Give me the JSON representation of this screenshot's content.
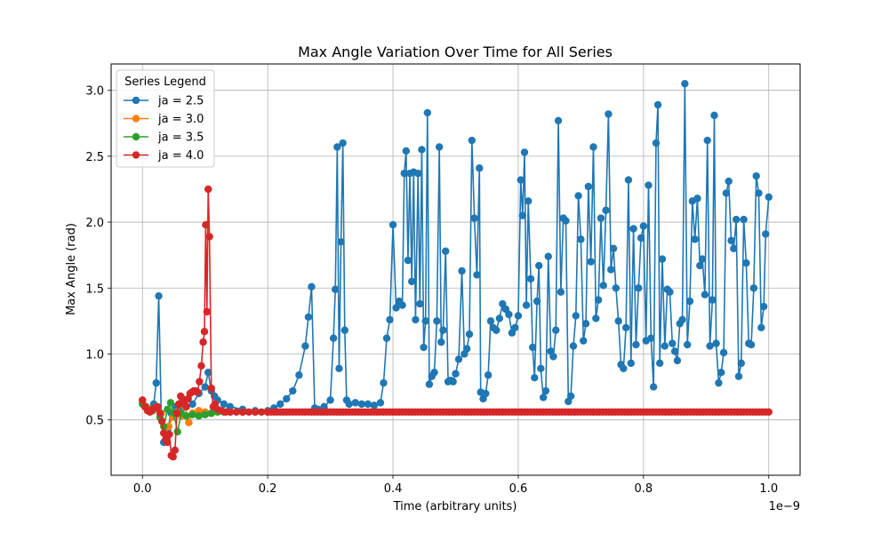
{
  "chart_data": {
    "type": "line",
    "title": "Max Angle Variation Over Time for All Series",
    "xlabel": "Time (arbitrary units)",
    "ylabel": "Max Angle (rad)",
    "x_offset_label": "1e−9",
    "xlim": [
      -0.05,
      1.05
    ],
    "ylim": [
      0.08,
      3.2
    ],
    "x_ticks": [
      0.0,
      0.2,
      0.4,
      0.6,
      0.8,
      1.0
    ],
    "x_tick_labels": [
      "0.0",
      "0.2",
      "0.4",
      "0.6",
      "0.8",
      "1.0"
    ],
    "y_ticks": [
      0.5,
      1.0,
      1.5,
      2.0,
      2.5,
      3.0
    ],
    "y_tick_labels": [
      "0.5",
      "1.0",
      "1.5",
      "2.0",
      "2.5",
      "3.0"
    ],
    "grid": true,
    "legend_title": "Series Legend",
    "legend_position": "top-left",
    "series": [
      {
        "name": "ja = 2.5",
        "color": "#1f77b4",
        "points": [
          [
            0.0,
            0.65
          ],
          [
            0.006,
            0.6
          ],
          [
            0.012,
            0.58
          ],
          [
            0.018,
            0.62
          ],
          [
            0.022,
            0.78
          ],
          [
            0.026,
            1.44
          ],
          [
            0.03,
            0.55
          ],
          [
            0.034,
            0.33
          ],
          [
            0.04,
            0.42
          ],
          [
            0.046,
            0.55
          ],
          [
            0.054,
            0.6
          ],
          [
            0.062,
            0.58
          ],
          [
            0.07,
            0.6
          ],
          [
            0.08,
            0.62
          ],
          [
            0.09,
            0.7
          ],
          [
            0.1,
            0.75
          ],
          [
            0.105,
            0.86
          ],
          [
            0.11,
            0.72
          ],
          [
            0.115,
            0.68
          ],
          [
            0.12,
            0.65
          ],
          [
            0.13,
            0.62
          ],
          [
            0.14,
            0.6
          ],
          [
            0.16,
            0.58
          ],
          [
            0.18,
            0.57
          ],
          [
            0.2,
            0.57
          ],
          [
            0.21,
            0.59
          ],
          [
            0.22,
            0.62
          ],
          [
            0.23,
            0.66
          ],
          [
            0.24,
            0.72
          ],
          [
            0.25,
            0.84
          ],
          [
            0.26,
            1.06
          ],
          [
            0.265,
            1.28
          ],
          [
            0.27,
            1.51
          ],
          [
            0.275,
            0.59
          ],
          [
            0.28,
            0.58
          ],
          [
            0.29,
            0.6
          ],
          [
            0.3,
            0.65
          ],
          [
            0.305,
            1.12
          ],
          [
            0.308,
            1.49
          ],
          [
            0.311,
            2.57
          ],
          [
            0.314,
            0.89
          ],
          [
            0.317,
            1.85
          ],
          [
            0.32,
            2.6
          ],
          [
            0.323,
            1.18
          ],
          [
            0.326,
            0.65
          ],
          [
            0.33,
            0.62
          ],
          [
            0.34,
            0.63
          ],
          [
            0.35,
            0.62
          ],
          [
            0.36,
            0.62
          ],
          [
            0.37,
            0.61
          ],
          [
            0.38,
            0.63
          ],
          [
            0.385,
            0.78
          ],
          [
            0.39,
            1.12
          ],
          [
            0.395,
            1.26
          ],
          [
            0.4,
            1.98
          ],
          [
            0.405,
            1.35
          ],
          [
            0.41,
            1.4
          ],
          [
            0.415,
            1.37
          ],
          [
            0.418,
            2.37
          ],
          [
            0.421,
            2.54
          ],
          [
            0.424,
            1.71
          ],
          [
            0.427,
            2.37
          ],
          [
            0.43,
            1.55
          ],
          [
            0.433,
            2.38
          ],
          [
            0.436,
            1.26
          ],
          [
            0.44,
            2.37
          ],
          [
            0.443,
            1.38
          ],
          [
            0.446,
            2.55
          ],
          [
            0.449,
            1.05
          ],
          [
            0.452,
            1.25
          ],
          [
            0.455,
            2.83
          ],
          [
            0.458,
            0.77
          ],
          [
            0.462,
            0.83
          ],
          [
            0.466,
            0.86
          ],
          [
            0.47,
            1.25
          ],
          [
            0.474,
            2.57
          ],
          [
            0.477,
            1.09
          ],
          [
            0.48,
            1.18
          ],
          [
            0.484,
            1.78
          ],
          [
            0.488,
            0.79
          ],
          [
            0.492,
            0.8
          ],
          [
            0.496,
            0.79
          ],
          [
            0.5,
            0.85
          ],
          [
            0.505,
            0.96
          ],
          [
            0.51,
            1.63
          ],
          [
            0.514,
            1.0
          ],
          [
            0.518,
            1.04
          ],
          [
            0.522,
            1.15
          ],
          [
            0.526,
            2.62
          ],
          [
            0.53,
            2.03
          ],
          [
            0.534,
            1.6
          ],
          [
            0.538,
            2.41
          ],
          [
            0.54,
            0.71
          ],
          [
            0.544,
            0.66
          ],
          [
            0.548,
            0.7
          ],
          [
            0.552,
            0.84
          ],
          [
            0.556,
            1.25
          ],
          [
            0.56,
            1.2
          ],
          [
            0.565,
            1.18
          ],
          [
            0.57,
            1.27
          ],
          [
            0.575,
            1.38
          ],
          [
            0.58,
            1.34
          ],
          [
            0.585,
            1.3
          ],
          [
            0.59,
            1.16
          ],
          [
            0.595,
            1.2
          ],
          [
            0.6,
            1.29
          ],
          [
            0.604,
            2.32
          ],
          [
            0.607,
            2.05
          ],
          [
            0.61,
            2.53
          ],
          [
            0.613,
            1.37
          ],
          [
            0.616,
            2.16
          ],
          [
            0.62,
            1.57
          ],
          [
            0.623,
            1.05
          ],
          [
            0.626,
            0.82
          ],
          [
            0.63,
            1.4
          ],
          [
            0.633,
            1.67
          ],
          [
            0.636,
            0.89
          ],
          [
            0.64,
            0.67
          ],
          [
            0.644,
            0.72
          ],
          [
            0.648,
            1.74
          ],
          [
            0.652,
            1.02
          ],
          [
            0.656,
            0.98
          ],
          [
            0.66,
            1.18
          ],
          [
            0.664,
            2.77
          ],
          [
            0.668,
            1.47
          ],
          [
            0.672,
            2.03
          ],
          [
            0.676,
            2.01
          ],
          [
            0.68,
            0.64
          ],
          [
            0.684,
            0.68
          ],
          [
            0.688,
            1.06
          ],
          [
            0.692,
            1.29
          ],
          [
            0.696,
            2.2
          ],
          [
            0.7,
            1.87
          ],
          [
            0.704,
            1.1
          ],
          [
            0.708,
            1.23
          ],
          [
            0.712,
            2.27
          ],
          [
            0.716,
            1.7
          ],
          [
            0.72,
            2.57
          ],
          [
            0.724,
            1.27
          ],
          [
            0.728,
            1.41
          ],
          [
            0.732,
            2.03
          ],
          [
            0.736,
            1.52
          ],
          [
            0.74,
            2.09
          ],
          [
            0.744,
            2.82
          ],
          [
            0.748,
            1.64
          ],
          [
            0.752,
            1.8
          ],
          [
            0.756,
            1.5
          ],
          [
            0.76,
            1.25
          ],
          [
            0.764,
            0.92
          ],
          [
            0.768,
            0.89
          ],
          [
            0.772,
            1.2
          ],
          [
            0.776,
            2.32
          ],
          [
            0.78,
            0.93
          ],
          [
            0.784,
            1.95
          ],
          [
            0.788,
            1.07
          ],
          [
            0.792,
            1.5
          ],
          [
            0.796,
            1.88
          ],
          [
            0.8,
            1.97
          ],
          [
            0.804,
            1.1
          ],
          [
            0.808,
            2.28
          ],
          [
            0.812,
            1.12
          ],
          [
            0.816,
            0.75
          ],
          [
            0.82,
            2.6
          ],
          [
            0.823,
            2.89
          ],
          [
            0.826,
            0.93
          ],
          [
            0.83,
            1.72
          ],
          [
            0.834,
            1.06
          ],
          [
            0.838,
            1.49
          ],
          [
            0.842,
            1.47
          ],
          [
            0.846,
            1.08
          ],
          [
            0.85,
            1.02
          ],
          [
            0.854,
            0.95
          ],
          [
            0.858,
            1.23
          ],
          [
            0.862,
            1.26
          ],
          [
            0.866,
            3.05
          ],
          [
            0.87,
            1.07
          ],
          [
            0.874,
            1.4
          ],
          [
            0.878,
            2.16
          ],
          [
            0.882,
            1.87
          ],
          [
            0.886,
            2.18
          ],
          [
            0.89,
            1.67
          ],
          [
            0.894,
            1.72
          ],
          [
            0.898,
            1.45
          ],
          [
            0.902,
            2.62
          ],
          [
            0.906,
            1.06
          ],
          [
            0.91,
            1.41
          ],
          [
            0.913,
            2.81
          ],
          [
            0.916,
            1.08
          ],
          [
            0.92,
            0.78
          ],
          [
            0.924,
            0.86
          ],
          [
            0.928,
            1.01
          ],
          [
            0.932,
            2.22
          ],
          [
            0.936,
            2.31
          ],
          [
            0.94,
            1.86
          ],
          [
            0.944,
            1.8
          ],
          [
            0.948,
            2.02
          ],
          [
            0.952,
            0.83
          ],
          [
            0.956,
            0.93
          ],
          [
            0.96,
            2.02
          ],
          [
            0.964,
            1.69
          ],
          [
            0.968,
            1.08
          ],
          [
            0.972,
            1.07
          ],
          [
            0.976,
            1.5
          ],
          [
            0.98,
            2.35
          ],
          [
            0.984,
            2.22
          ],
          [
            0.988,
            1.2
          ],
          [
            0.992,
            1.36
          ],
          [
            0.995,
            1.91
          ],
          [
            1.0,
            2.19
          ]
        ]
      },
      {
        "name": "ja = 3.0",
        "color": "#ff7f0e",
        "points": [
          [
            0.0,
            0.63
          ],
          [
            0.008,
            0.59
          ],
          [
            0.016,
            0.57
          ],
          [
            0.024,
            0.6
          ],
          [
            0.03,
            0.55
          ],
          [
            0.036,
            0.4
          ],
          [
            0.042,
            0.45
          ],
          [
            0.048,
            0.52
          ],
          [
            0.055,
            0.56
          ],
          [
            0.062,
            0.53
          ],
          [
            0.068,
            0.6
          ],
          [
            0.074,
            0.48
          ],
          [
            0.08,
            0.55
          ],
          [
            0.09,
            0.57
          ],
          [
            0.1,
            0.56
          ],
          [
            0.11,
            0.55
          ],
          [
            0.12,
            0.57
          ],
          [
            0.13,
            0.56
          ],
          [
            0.14,
            0.56
          ],
          [
            0.16,
            0.56
          ],
          [
            0.18,
            0.56
          ],
          [
            0.2,
            0.56
          ]
        ]
      },
      {
        "name": "ja = 3.5",
        "color": "#2ca02c",
        "points": [
          [
            0.0,
            0.62
          ],
          [
            0.008,
            0.58
          ],
          [
            0.016,
            0.57
          ],
          [
            0.022,
            0.6
          ],
          [
            0.028,
            0.52
          ],
          [
            0.034,
            0.45
          ],
          [
            0.04,
            0.58
          ],
          [
            0.045,
            0.63
          ],
          [
            0.05,
            0.55
          ],
          [
            0.056,
            0.41
          ],
          [
            0.062,
            0.55
          ],
          [
            0.07,
            0.53
          ],
          [
            0.08,
            0.54
          ],
          [
            0.09,
            0.53
          ],
          [
            0.1,
            0.54
          ],
          [
            0.11,
            0.55
          ],
          [
            0.12,
            0.56
          ],
          [
            0.13,
            0.56
          ],
          [
            0.14,
            0.56
          ],
          [
            0.16,
            0.56
          ],
          [
            0.18,
            0.56
          ],
          [
            0.2,
            0.56
          ]
        ]
      },
      {
        "name": "ja = 4.0",
        "color": "#d62728",
        "points": [
          [
            0.0,
            0.65
          ],
          [
            0.004,
            0.6
          ],
          [
            0.008,
            0.57
          ],
          [
            0.012,
            0.56
          ],
          [
            0.016,
            0.58
          ],
          [
            0.02,
            0.59
          ],
          [
            0.024,
            0.6
          ],
          [
            0.028,
            0.55
          ],
          [
            0.031,
            0.49
          ],
          [
            0.034,
            0.4
          ],
          [
            0.037,
            0.35
          ],
          [
            0.04,
            0.33
          ],
          [
            0.043,
            0.39
          ],
          [
            0.046,
            0.23
          ],
          [
            0.049,
            0.22
          ],
          [
            0.052,
            0.27
          ],
          [
            0.055,
            0.55
          ],
          [
            0.058,
            0.62
          ],
          [
            0.061,
            0.68
          ],
          [
            0.064,
            0.66
          ],
          [
            0.067,
            0.62
          ],
          [
            0.07,
            0.6
          ],
          [
            0.073,
            0.66
          ],
          [
            0.076,
            0.7
          ],
          [
            0.079,
            0.71
          ],
          [
            0.082,
            0.72
          ],
          [
            0.085,
            0.72
          ],
          [
            0.088,
            0.71
          ],
          [
            0.091,
            0.79
          ],
          [
            0.094,
            0.91
          ],
          [
            0.097,
            1.09
          ],
          [
            0.099,
            1.17
          ],
          [
            0.101,
            1.98
          ],
          [
            0.103,
            1.32
          ],
          [
            0.105,
            2.25
          ],
          [
            0.107,
            1.89
          ],
          [
            0.11,
            0.74
          ],
          [
            0.113,
            0.6
          ],
          [
            0.116,
            0.62
          ],
          [
            0.12,
            0.58
          ],
          [
            0.126,
            0.57
          ],
          [
            0.133,
            0.56
          ],
          [
            0.14,
            0.56
          ],
          [
            0.15,
            0.56
          ],
          [
            0.16,
            0.56
          ],
          [
            0.17,
            0.56
          ],
          [
            0.18,
            0.56
          ],
          [
            0.19,
            0.56
          ],
          [
            0.2,
            0.56
          ]
        ],
        "steady_from": 0.2,
        "steady_to": 1.0,
        "steady_step": 0.005,
        "steady_value": 0.56
      }
    ]
  }
}
